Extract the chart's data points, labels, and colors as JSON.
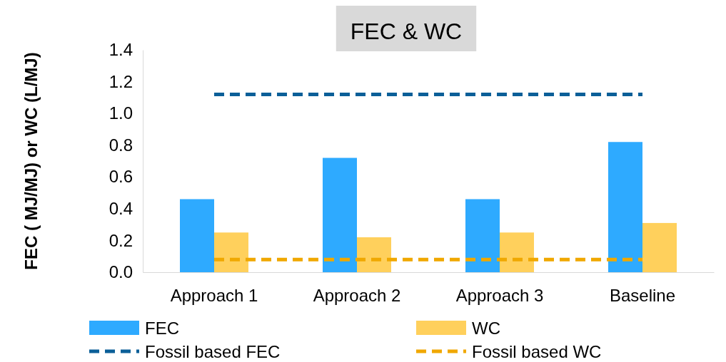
{
  "chart_data": {
    "type": "bar",
    "title": "FEC & WC",
    "ylabel": "FEC ( MJ/MJ) or WC (L/MJ)",
    "categories": [
      "Approach 1",
      "Approach 2",
      "Approach 3",
      "Baseline"
    ],
    "series": [
      {
        "name": "FEC",
        "color": "#2eaaff",
        "values": [
          0.46,
          0.72,
          0.46,
          0.82
        ]
      },
      {
        "name": "WC",
        "color": "#ffd05c",
        "values": [
          0.25,
          0.22,
          0.25,
          0.31
        ]
      },
      {
        "name": "Fossil based FEC",
        "type": "line",
        "line_style": "dashed",
        "color": "#0b5f98",
        "values": [
          1.12,
          1.12,
          1.12,
          1.12
        ]
      },
      {
        "name": "Fossil based WC",
        "type": "line",
        "line_style": "dashed",
        "color": "#f0a800",
        "values": [
          0.08,
          0.08,
          0.08,
          0.08
        ]
      }
    ],
    "ylim": [
      0,
      1.4
    ],
    "yticks": [
      {
        "value": 0,
        "label": "0.0"
      },
      {
        "value": 0.2,
        "label": "0.2"
      },
      {
        "value": 0.4,
        "label": "0.4"
      },
      {
        "value": 0.6,
        "label": "0.6"
      },
      {
        "value": 0.8,
        "label": "0.8"
      },
      {
        "value": 1,
        "label": "1.0"
      },
      {
        "value": 1.2,
        "label": "1.2"
      },
      {
        "value": 1.4,
        "label": "1.4"
      }
    ],
    "grid": false,
    "legend": "bottom",
    "marker": "none"
  }
}
